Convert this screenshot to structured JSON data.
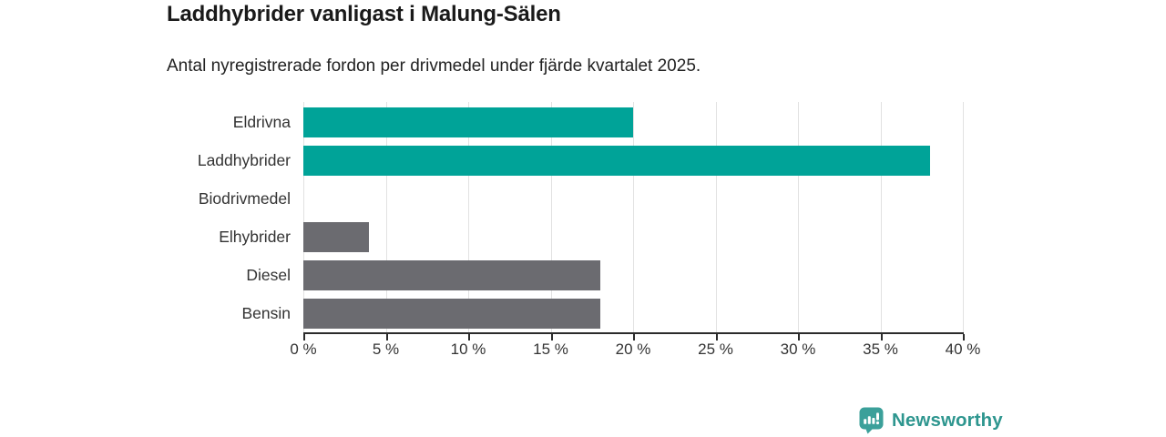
{
  "header": {
    "title": "Laddhybrider vanligast i Malung-Sälen",
    "subtitle": "Antal nyregistrerade fordon per drivmedel under fjärde kvartalet 2025."
  },
  "chart_data": {
    "type": "bar",
    "orientation": "horizontal",
    "title": "Laddhybrider vanligast i Malung-Sälen",
    "subtitle": "Antal nyregistrerade fordon per drivmedel under fjärde kvartalet 2025.",
    "categories": [
      "Eldrivna",
      "Laddhybrider",
      "Biodrivmedel",
      "Elhybrider",
      "Diesel",
      "Bensin"
    ],
    "values": [
      20,
      38,
      0,
      4,
      18,
      18
    ],
    "unit": "%",
    "bar_colors": [
      "#00a398",
      "#00a398",
      "#6b6b70",
      "#6b6b70",
      "#6b6b70",
      "#6b6b70"
    ],
    "xlim": [
      0,
      40
    ],
    "x_tick_labels": [
      "0 %",
      "5 %",
      "10 %",
      "15 %",
      "20 %",
      "25 %",
      "30 %",
      "35 %",
      "40 %"
    ],
    "x_tick_values": [
      0,
      5,
      10,
      15,
      20,
      25,
      30,
      35,
      40
    ],
    "grid": "vertical",
    "legend": "none"
  },
  "colors": {
    "highlight_teal": "#00a398",
    "neutral_gray": "#6b6b70",
    "gridline": "#e2e2e2",
    "axis": "#2b2b2b",
    "text": "#333333",
    "brand_teal": "#2e968f",
    "logo_fill": "#3ba09a"
  },
  "footer": {
    "brand_name": "Newsworthy"
  }
}
